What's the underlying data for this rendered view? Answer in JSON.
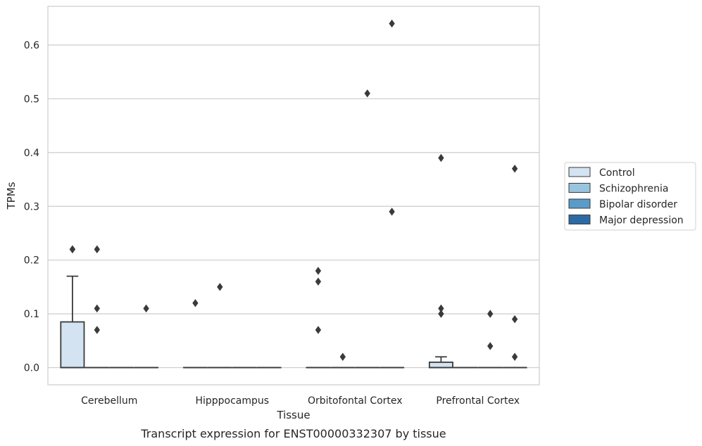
{
  "chart_data": {
    "type": "box",
    "xlabel": "Tissue",
    "ylabel": "TPMs",
    "caption": "Transcript expression for ENST00000332307 by tissue",
    "categories": [
      "Cerebellum",
      "Hipppocampus",
      "Orbitofontal Cortex",
      "Prefrontal Cortex"
    ],
    "ylim": [
      -0.032,
      0.672
    ],
    "yticks": [
      "0.0",
      "0.1",
      "0.2",
      "0.3",
      "0.4",
      "0.5",
      "0.6"
    ],
    "grid": "horizontal",
    "legend_position": "right",
    "series": [
      {
        "name": "Control",
        "color": "#d3e3f2",
        "boxes": [
          {
            "q1": 0,
            "median": 0,
            "q3": 0.085,
            "whisker_low": 0,
            "whisker_high": 0.17,
            "outliers": [
              0.22,
              0.22
            ]
          },
          {
            "q1": 0,
            "median": 0,
            "q3": 0,
            "whisker_low": 0,
            "whisker_high": 0,
            "outliers": [
              0.12
            ]
          },
          {
            "q1": 0,
            "median": 0,
            "q3": 0,
            "whisker_low": 0,
            "whisker_high": 0,
            "outliers": [
              0.18,
              0.16,
              0.07
            ]
          },
          {
            "q1": 0,
            "median": 0,
            "q3": 0.01,
            "whisker_low": 0,
            "whisker_high": 0.02,
            "outliers": [
              0.39,
              0.11,
              0.1
            ]
          }
        ]
      },
      {
        "name": "Schizophrenia",
        "color": "#9ac4de",
        "boxes": [
          {
            "q1": 0,
            "median": 0,
            "q3": 0,
            "whisker_low": 0,
            "whisker_high": 0,
            "outliers": [
              0.22,
              0.11,
              0.07
            ]
          },
          {
            "q1": 0,
            "median": 0,
            "q3": 0,
            "whisker_low": 0,
            "whisker_high": 0,
            "outliers": [
              0.15
            ]
          },
          {
            "q1": 0,
            "median": 0,
            "q3": 0,
            "whisker_low": 0,
            "whisker_high": 0,
            "outliers": [
              0.02
            ]
          },
          {
            "q1": 0,
            "median": 0,
            "q3": 0,
            "whisker_low": 0,
            "whisker_high": 0,
            "outliers": []
          }
        ]
      },
      {
        "name": "Bipolar disorder",
        "color": "#5a9bc9",
        "boxes": [
          {
            "q1": 0,
            "median": 0,
            "q3": 0,
            "whisker_low": 0,
            "whisker_high": 0,
            "outliers": []
          },
          {
            "q1": 0,
            "median": 0,
            "q3": 0,
            "whisker_low": 0,
            "whisker_high": 0,
            "outliers": []
          },
          {
            "q1": 0,
            "median": 0,
            "q3": 0,
            "whisker_low": 0,
            "whisker_high": 0,
            "outliers": [
              0.51
            ]
          },
          {
            "q1": 0,
            "median": 0,
            "q3": 0,
            "whisker_low": 0,
            "whisker_high": 0,
            "outliers": [
              0.1,
              0.04
            ]
          }
        ]
      },
      {
        "name": "Major depression",
        "color": "#2c6aa5",
        "boxes": [
          {
            "q1": 0,
            "median": 0,
            "q3": 0,
            "whisker_low": 0,
            "whisker_high": 0,
            "outliers": [
              0.11
            ]
          },
          {
            "q1": 0,
            "median": 0,
            "q3": 0,
            "whisker_low": 0,
            "whisker_high": 0,
            "outliers": []
          },
          {
            "q1": 0,
            "median": 0,
            "q3": 0,
            "whisker_low": 0,
            "whisker_high": 0,
            "outliers": [
              0.64,
              0.29
            ]
          },
          {
            "q1": 0,
            "median": 0,
            "q3": 0,
            "whisker_low": 0,
            "whisker_high": 0,
            "outliers": [
              0.37,
              0.09,
              0.02
            ]
          }
        ]
      }
    ]
  }
}
